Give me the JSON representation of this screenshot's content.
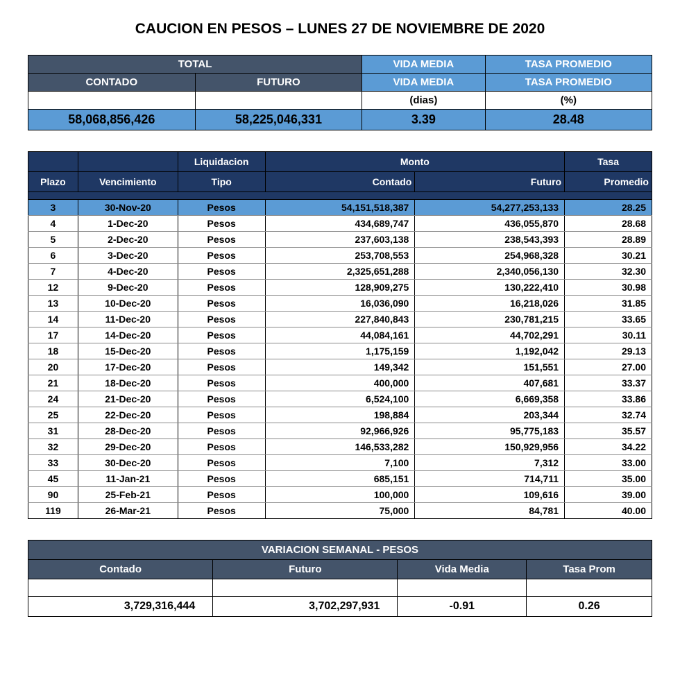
{
  "title": "CAUCION EN PESOS – LUNES 27 DE NOVIEMBRE DE 2020",
  "colors": {
    "header_dark": "#44546a",
    "header_navy": "#1f3864",
    "highlight_blue": "#5b9bd5",
    "text_white": "#ffffff",
    "text_black": "#000000",
    "background": "#ffffff"
  },
  "summary": {
    "labels": {
      "total": "TOTAL",
      "contado": "CONTADO",
      "futuro": "FUTURO",
      "vida_media": "VIDA MEDIA",
      "tasa_promedio": "TASA PROMEDIO",
      "dias": "(dias)",
      "pct": "(%)"
    },
    "values": {
      "contado": "58,068,856,426",
      "futuro": "58,225,046,331",
      "vida_media": "3.39",
      "tasa_promedio": "28.48"
    }
  },
  "main_table": {
    "head1": {
      "plazo": "",
      "venc": "",
      "liq": "Liquidacion",
      "monto": "Monto",
      "tasa": "Tasa"
    },
    "head2": {
      "plazo": "Plazo",
      "venc": "Vencimiento",
      "tipo": "Tipo",
      "contado": "Contado",
      "futuro": "Futuro",
      "promedio": "Promedio"
    },
    "rows": [
      {
        "plazo": "3",
        "venc": "30-Nov-20",
        "tipo": "Pesos",
        "contado": "54,151,518,387",
        "futuro": "54,277,253,133",
        "tasa": "28.25",
        "highlight": true
      },
      {
        "plazo": "4",
        "venc": "1-Dec-20",
        "tipo": "Pesos",
        "contado": "434,689,747",
        "futuro": "436,055,870",
        "tasa": "28.68"
      },
      {
        "plazo": "5",
        "venc": "2-Dec-20",
        "tipo": "Pesos",
        "contado": "237,603,138",
        "futuro": "238,543,393",
        "tasa": "28.89"
      },
      {
        "plazo": "6",
        "venc": "3-Dec-20",
        "tipo": "Pesos",
        "contado": "253,708,553",
        "futuro": "254,968,328",
        "tasa": "30.21"
      },
      {
        "plazo": "7",
        "venc": "4-Dec-20",
        "tipo": "Pesos",
        "contado": "2,325,651,288",
        "futuro": "2,340,056,130",
        "tasa": "32.30"
      },
      {
        "plazo": "12",
        "venc": "9-Dec-20",
        "tipo": "Pesos",
        "contado": "128,909,275",
        "futuro": "130,222,410",
        "tasa": "30.98"
      },
      {
        "plazo": "13",
        "venc": "10-Dec-20",
        "tipo": "Pesos",
        "contado": "16,036,090",
        "futuro": "16,218,026",
        "tasa": "31.85"
      },
      {
        "plazo": "14",
        "venc": "11-Dec-20",
        "tipo": "Pesos",
        "contado": "227,840,843",
        "futuro": "230,781,215",
        "tasa": "33.65"
      },
      {
        "plazo": "17",
        "venc": "14-Dec-20",
        "tipo": "Pesos",
        "contado": "44,084,161",
        "futuro": "44,702,291",
        "tasa": "30.11"
      },
      {
        "plazo": "18",
        "venc": "15-Dec-20",
        "tipo": "Pesos",
        "contado": "1,175,159",
        "futuro": "1,192,042",
        "tasa": "29.13"
      },
      {
        "plazo": "20",
        "venc": "17-Dec-20",
        "tipo": "Pesos",
        "contado": "149,342",
        "futuro": "151,551",
        "tasa": "27.00"
      },
      {
        "plazo": "21",
        "venc": "18-Dec-20",
        "tipo": "Pesos",
        "contado": "400,000",
        "futuro": "407,681",
        "tasa": "33.37"
      },
      {
        "plazo": "24",
        "venc": "21-Dec-20",
        "tipo": "Pesos",
        "contado": "6,524,100",
        "futuro": "6,669,358",
        "tasa": "33.86"
      },
      {
        "plazo": "25",
        "venc": "22-Dec-20",
        "tipo": "Pesos",
        "contado": "198,884",
        "futuro": "203,344",
        "tasa": "32.74"
      },
      {
        "plazo": "31",
        "venc": "28-Dec-20",
        "tipo": "Pesos",
        "contado": "92,966,926",
        "futuro": "95,775,183",
        "tasa": "35.57"
      },
      {
        "plazo": "32",
        "venc": "29-Dec-20",
        "tipo": "Pesos",
        "contado": "146,533,282",
        "futuro": "150,929,956",
        "tasa": "34.22"
      },
      {
        "plazo": "33",
        "venc": "30-Dec-20",
        "tipo": "Pesos",
        "contado": "7,100",
        "futuro": "7,312",
        "tasa": "33.00"
      },
      {
        "plazo": "45",
        "venc": "11-Jan-21",
        "tipo": "Pesos",
        "contado": "685,151",
        "futuro": "714,711",
        "tasa": "35.00"
      },
      {
        "plazo": "90",
        "venc": "25-Feb-21",
        "tipo": "Pesos",
        "contado": "100,000",
        "futuro": "109,616",
        "tasa": "39.00"
      },
      {
        "plazo": "119",
        "venc": "26-Mar-21",
        "tipo": "Pesos",
        "contado": "75,000",
        "futuro": "84,781",
        "tasa": "40.00"
      }
    ]
  },
  "variation": {
    "title": "VARIACION SEMANAL - PESOS",
    "headers": {
      "contado": "Contado",
      "futuro": "Futuro",
      "vida_media": "Vida Media",
      "tasa_prom": "Tasa Prom"
    },
    "values": {
      "contado": "3,729,316,444",
      "futuro": "3,702,297,931",
      "vida_media": "-0.91",
      "tasa_prom": "0.26"
    }
  }
}
